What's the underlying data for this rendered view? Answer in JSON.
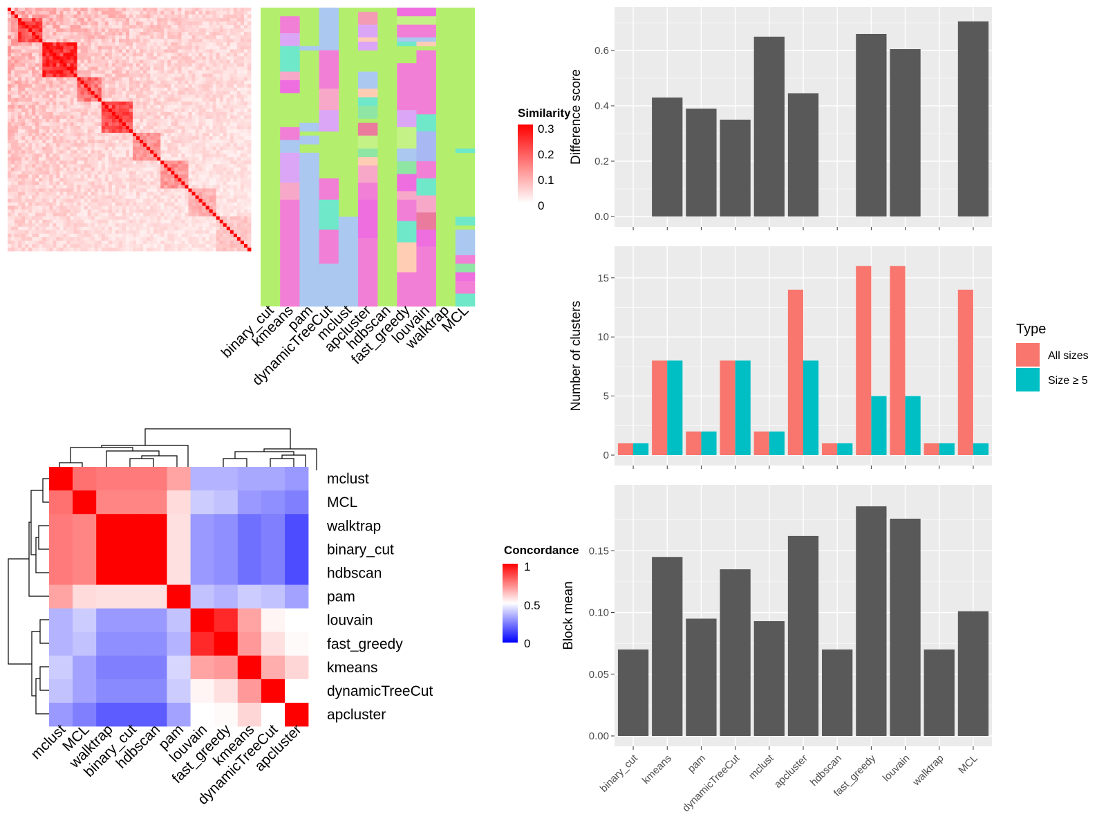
{
  "colors": {
    "panel_bg": "#ebebeb",
    "grid": "#ffffff",
    "bar_gray": "#595959",
    "all_sizes": "#f8766d",
    "size_ge5": "#00bfc4",
    "hm_red": "#ff0000",
    "hm_white": "#ffffff",
    "hm_blue": "#0000ff",
    "class_default": "#b3ef6d"
  },
  "methods": [
    "binary_cut",
    "kmeans",
    "pam",
    "dynamicTreeCut",
    "mclust",
    "apcluster",
    "hdbscan",
    "fast_greedy",
    "louvain",
    "walktrap",
    "MCL"
  ],
  "similarity_heatmap": {
    "legend_title": "Similarity",
    "legend_ticks": [
      "0.3",
      "0.2",
      "0.1",
      "0"
    ],
    "class_columns": [
      "binary_cut",
      "kmeans",
      "pam",
      "dynamicTreeCut",
      "mclust",
      "apcluster",
      "hdbscan",
      "fast_greedy",
      "louvain",
      "walktrap",
      "MCL"
    ]
  },
  "concordance_heatmap": {
    "legend_title": "Concordance",
    "legend_ticks": [
      "1",
      "0.5",
      "0"
    ],
    "order": [
      "mclust",
      "MCL",
      "walktrap",
      "binary_cut",
      "hdbscan",
      "pam",
      "louvain",
      "fast_greedy",
      "kmeans",
      "dynamicTreeCut",
      "apcluster"
    ],
    "matrix": [
      [
        1.0,
        0.78,
        0.76,
        0.76,
        0.76,
        0.68,
        0.35,
        0.35,
        0.33,
        0.33,
        0.3
      ],
      [
        0.78,
        1.0,
        0.74,
        0.74,
        0.74,
        0.57,
        0.4,
        0.38,
        0.3,
        0.28,
        0.25
      ],
      [
        0.76,
        0.74,
        1.0,
        1.0,
        1.0,
        0.56,
        0.3,
        0.28,
        0.22,
        0.25,
        0.15
      ],
      [
        0.76,
        0.74,
        1.0,
        1.0,
        1.0,
        0.56,
        0.3,
        0.28,
        0.22,
        0.25,
        0.15
      ],
      [
        0.76,
        0.74,
        1.0,
        1.0,
        1.0,
        0.56,
        0.3,
        0.28,
        0.22,
        0.25,
        0.15
      ],
      [
        0.68,
        0.57,
        0.56,
        0.56,
        0.56,
        1.0,
        0.38,
        0.35,
        0.4,
        0.38,
        0.32
      ],
      [
        0.35,
        0.4,
        0.3,
        0.3,
        0.3,
        0.38,
        1.0,
        0.92,
        0.68,
        0.52,
        0.5
      ],
      [
        0.35,
        0.38,
        0.28,
        0.28,
        0.28,
        0.35,
        0.92,
        1.0,
        0.7,
        0.56,
        0.51
      ],
      [
        0.4,
        0.32,
        0.25,
        0.25,
        0.25,
        0.42,
        0.68,
        0.7,
        1.0,
        0.66,
        0.58
      ],
      [
        0.38,
        0.32,
        0.27,
        0.27,
        0.27,
        0.4,
        0.52,
        0.56,
        0.7,
        1.0,
        0.5
      ],
      [
        0.3,
        0.25,
        0.18,
        0.18,
        0.18,
        0.32,
        0.5,
        0.51,
        0.58,
        0.5,
        1.0
      ]
    ]
  },
  "chart_data": [
    {
      "type": "bar",
      "title": "",
      "xlabel": "",
      "ylabel": "Difference score",
      "ylim": [
        0,
        0.72
      ],
      "yticks": [
        "0.0",
        "0.2",
        "0.4",
        "0.6"
      ],
      "categories": [
        "binary_cut",
        "kmeans",
        "pam",
        "dynamicTreeCut",
        "mclust",
        "apcluster",
        "hdbscan",
        "fast_greedy",
        "louvain",
        "walktrap",
        "MCL"
      ],
      "values": [
        0,
        0.43,
        0.39,
        0.35,
        0.65,
        0.445,
        0,
        0.66,
        0.605,
        0,
        0.705
      ]
    },
    {
      "type": "bar",
      "title": "",
      "xlabel": "",
      "ylabel": "Number of clusters",
      "ylim": [
        0,
        16.8
      ],
      "yticks": [
        "0",
        "5",
        "10",
        "15"
      ],
      "categories": [
        "binary_cut",
        "kmeans",
        "pam",
        "dynamicTreeCut",
        "mclust",
        "apcluster",
        "hdbscan",
        "fast_greedy",
        "louvain",
        "walktrap",
        "MCL"
      ],
      "legend": {
        "title": "Type",
        "placement": "right"
      },
      "series": [
        {
          "name": "All sizes",
          "values": [
            1,
            8,
            2,
            8,
            2,
            14,
            1,
            16,
            16,
            1,
            14
          ]
        },
        {
          "name": "Size ≥ 5",
          "values": [
            1,
            8,
            2,
            8,
            2,
            8,
            1,
            5,
            5,
            1,
            1
          ]
        }
      ]
    },
    {
      "type": "bar",
      "title": "",
      "xlabel": "",
      "ylabel": "Block mean",
      "ylim": [
        0,
        0.195
      ],
      "yticks": [
        "0.00",
        "0.05",
        "0.10",
        "0.15"
      ],
      "categories": [
        "binary_cut",
        "kmeans",
        "pam",
        "dynamicTreeCut",
        "mclust",
        "apcluster",
        "hdbscan",
        "fast_greedy",
        "louvain",
        "walktrap",
        "MCL"
      ],
      "values": [
        0.07,
        0.145,
        0.095,
        0.135,
        0.093,
        0.162,
        0.07,
        0.186,
        0.176,
        0.07,
        0.101
      ]
    }
  ]
}
